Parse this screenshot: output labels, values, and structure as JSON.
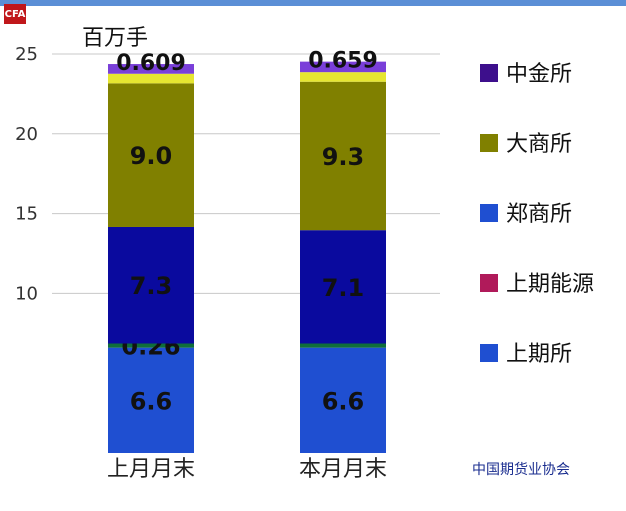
{
  "header": {
    "logo_text": "CFA"
  },
  "chart_data": {
    "type": "bar",
    "stacked": true,
    "unit_label": "百万手",
    "categories": [
      "上月月末",
      "本月月末"
    ],
    "yticks": [
      10,
      15,
      20,
      25
    ],
    "ylim": [
      0,
      26
    ],
    "grid": true,
    "legend_position": "right",
    "series": [
      {
        "name": "上期所",
        "color": "#1f4fd1",
        "values": [
          6.6,
          6.6
        ],
        "labels": [
          "6.6",
          "6.6"
        ]
      },
      {
        "name": "上期能源",
        "color": "#0f6e3a",
        "values": [
          0.26,
          0.26
        ],
        "labels": [
          "0.26",
          ""
        ]
      },
      {
        "name": "郑商所",
        "color": "#b01a5a",
        "values": [
          0.0,
          0.0
        ],
        "labels": [
          "",
          ""
        ]
      },
      {
        "name": "郑商所",
        "color": "#0a0a9e",
        "values": [
          7.3,
          7.1
        ],
        "labels": [
          "7.3",
          "7.1"
        ]
      },
      {
        "name": "大商所",
        "color": "#808000",
        "values": [
          9.0,
          9.3
        ],
        "labels": [
          "9.0",
          "9.3"
        ]
      },
      {
        "name": "",
        "color": "#e6e631",
        "values": [
          0.6,
          0.6
        ],
        "labels": [
          "",
          ""
        ]
      },
      {
        "name": "中金所",
        "color": "#7a3fd9",
        "values": [
          0.609,
          0.659
        ],
        "labels": [
          "0.609",
          "0.659"
        ]
      }
    ],
    "legend": [
      {
        "name": "中金所",
        "color": "#3d0f8c"
      },
      {
        "name": "大商所",
        "color": "#808000"
      },
      {
        "name": "郑商所",
        "color": "#1f4fd1"
      },
      {
        "name": "上期能源",
        "color": "#b01a5a"
      },
      {
        "name": "上期所",
        "color": "#1f4fd1"
      }
    ]
  },
  "footer": {
    "source": "中国期货业协会"
  }
}
